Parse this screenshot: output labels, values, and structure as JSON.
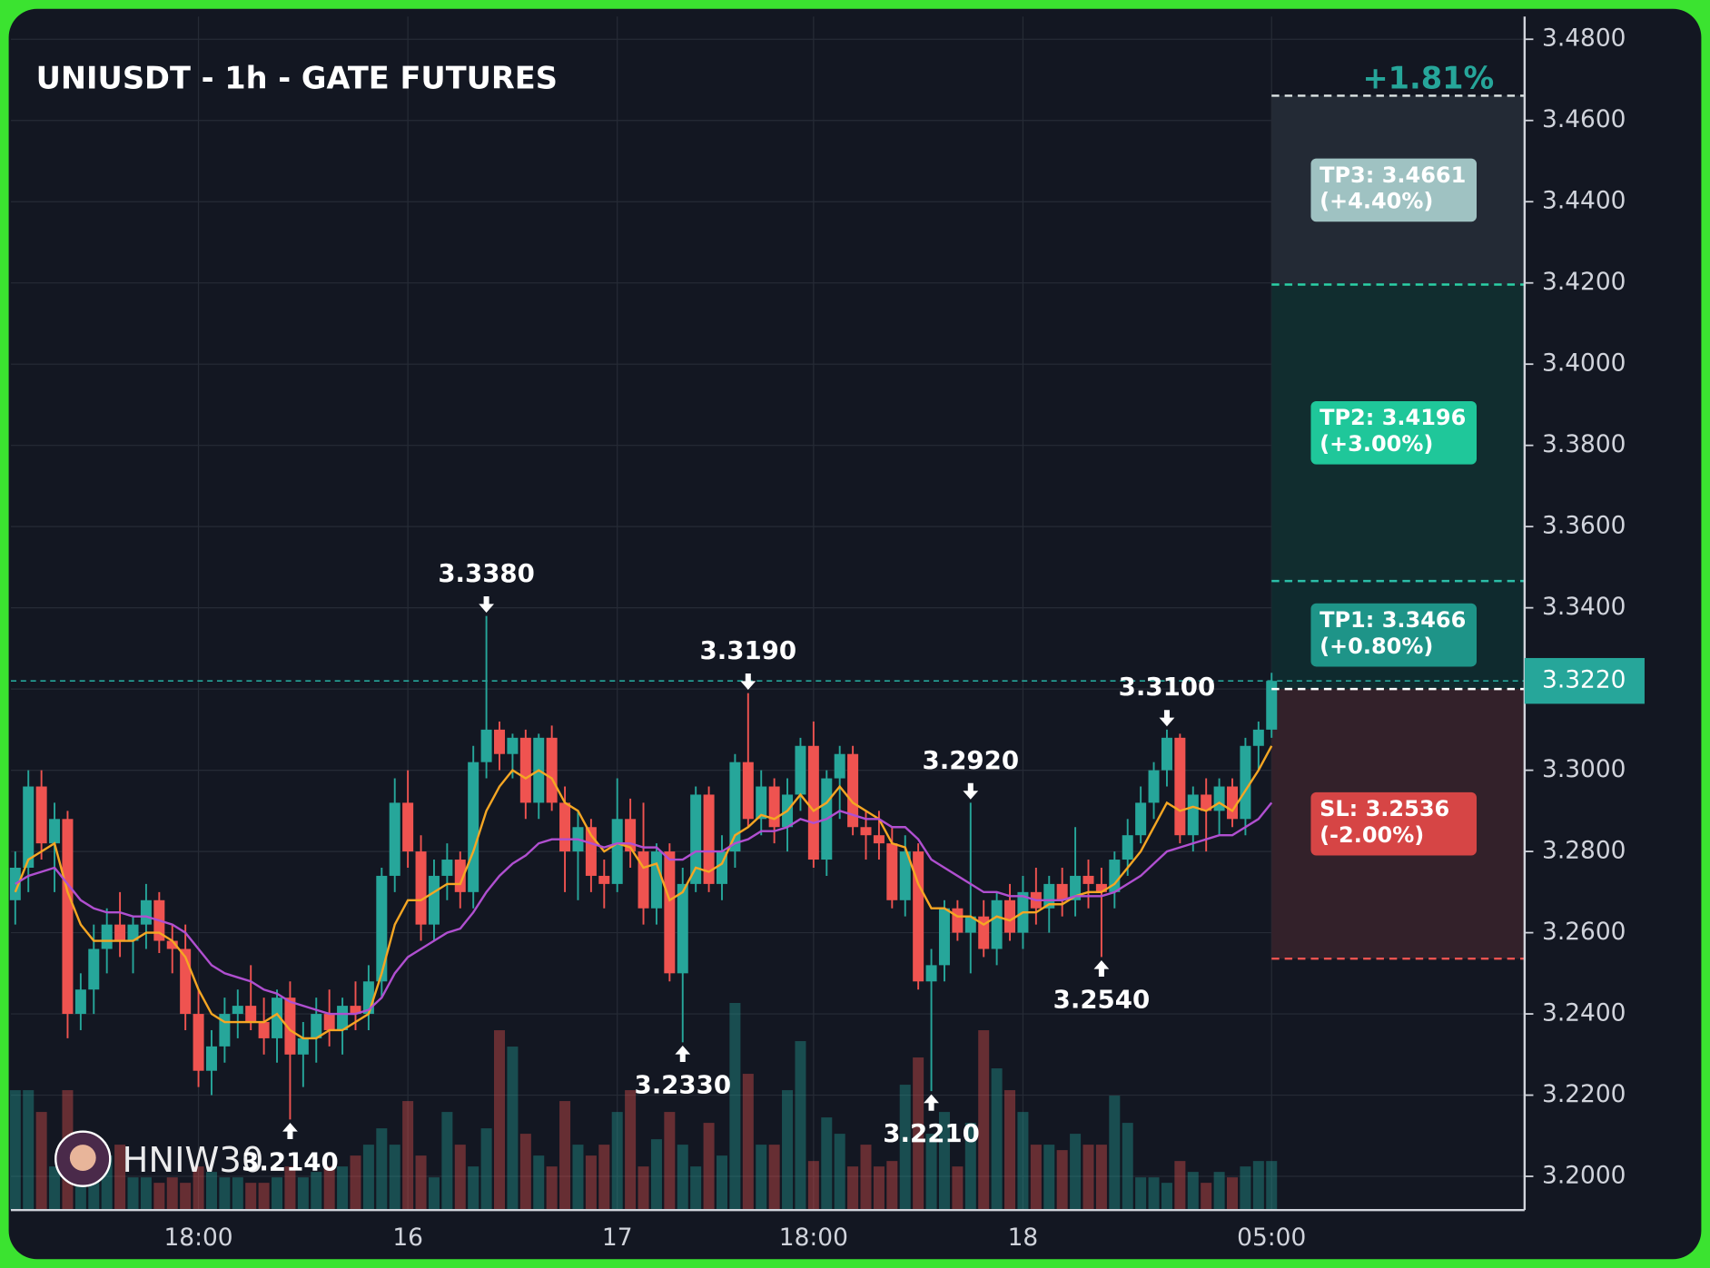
{
  "chart_data": {
    "type": "candlestick",
    "title": "UNIUSDT - 1h - GATE FUTURES",
    "watermark": "HNIW30",
    "up_color": "#26a69a",
    "down_color": "#ef5350",
    "grid": true,
    "ylim": [
      3.1917,
      3.4856
    ],
    "yticks": [
      {
        "value": 3.2,
        "label": "3.2000"
      },
      {
        "value": 3.22,
        "label": "3.2200"
      },
      {
        "value": 3.24,
        "label": "3.2400"
      },
      {
        "value": 3.26,
        "label": "3.2600"
      },
      {
        "value": 3.28,
        "label": "3.2800"
      },
      {
        "value": 3.3,
        "label": "3.3000"
      },
      {
        "value": 3.32,
        "label": "3.3200"
      },
      {
        "value": 3.34,
        "label": "3.3400"
      },
      {
        "value": 3.36,
        "label": "3.3600"
      },
      {
        "value": 3.38,
        "label": "3.3800"
      },
      {
        "value": 3.4,
        "label": "3.4000"
      },
      {
        "value": 3.42,
        "label": "3.4200"
      },
      {
        "value": 3.44,
        "label": "3.4400"
      },
      {
        "value": 3.46,
        "label": "3.4600"
      },
      {
        "value": 3.48,
        "label": "3.4800"
      }
    ],
    "categories": [
      null,
      null,
      null,
      null,
      null,
      null,
      null,
      null,
      null,
      null,
      null,
      null,
      null,
      null,
      "18:00",
      null,
      null,
      null,
      null,
      null,
      null,
      null,
      null,
      null,
      null,
      null,
      null,
      null,
      null,
      null,
      "16",
      null,
      null,
      null,
      null,
      null,
      null,
      null,
      null,
      null,
      null,
      null,
      null,
      null,
      null,
      null,
      "17",
      null,
      null,
      null,
      null,
      null,
      null,
      null,
      null,
      null,
      null,
      null,
      null,
      null,
      null,
      "18:00",
      null,
      null,
      null,
      null,
      null,
      null,
      null,
      null,
      null,
      null,
      null,
      null,
      null,
      null,
      null,
      "18",
      null,
      null,
      null,
      null,
      null,
      null,
      null,
      null,
      null,
      null,
      null,
      null,
      null,
      null,
      null,
      null,
      null,
      null,
      "05:00"
    ],
    "candles": [
      [
        3.268,
        3.28,
        3.262,
        3.276
      ],
      [
        3.276,
        3.3,
        3.27,
        3.296
      ],
      [
        3.296,
        3.3,
        3.278,
        3.282
      ],
      [
        3.282,
        3.292,
        3.27,
        3.288
      ],
      [
        3.288,
        3.29,
        3.234,
        3.24
      ],
      [
        3.24,
        3.25,
        3.236,
        3.246
      ],
      [
        3.246,
        3.262,
        3.24,
        3.256
      ],
      [
        3.256,
        3.266,
        3.25,
        3.262
      ],
      [
        3.262,
        3.27,
        3.254,
        3.258
      ],
      [
        3.258,
        3.264,
        3.25,
        3.262
      ],
      [
        3.262,
        3.272,
        3.256,
        3.268
      ],
      [
        3.268,
        3.27,
        3.255,
        3.258
      ],
      [
        3.258,
        3.262,
        3.25,
        3.256
      ],
      [
        3.256,
        3.262,
        3.236,
        3.24
      ],
      [
        3.24,
        3.246,
        3.222,
        3.226
      ],
      [
        3.226,
        3.236,
        3.22,
        3.232
      ],
      [
        3.232,
        3.244,
        3.228,
        3.24
      ],
      [
        3.24,
        3.246,
        3.234,
        3.242
      ],
      [
        3.242,
        3.252,
        3.236,
        3.238
      ],
      [
        3.238,
        3.244,
        3.23,
        3.234
      ],
      [
        3.234,
        3.246,
        3.228,
        3.244
      ],
      [
        3.244,
        3.248,
        3.214,
        3.23
      ],
      [
        3.23,
        3.238,
        3.222,
        3.234
      ],
      [
        3.234,
        3.244,
        3.228,
        3.24
      ],
      [
        3.24,
        3.246,
        3.232,
        3.236
      ],
      [
        3.236,
        3.244,
        3.23,
        3.242
      ],
      [
        3.242,
        3.248,
        3.236,
        3.24
      ],
      [
        3.24,
        3.252,
        3.236,
        3.248
      ],
      [
        3.248,
        3.276,
        3.244,
        3.274
      ],
      [
        3.274,
        3.298,
        3.27,
        3.292
      ],
      [
        3.292,
        3.3,
        3.276,
        3.28
      ],
      [
        3.28,
        3.284,
        3.258,
        3.262
      ],
      [
        3.262,
        3.278,
        3.258,
        3.274
      ],
      [
        3.274,
        3.282,
        3.268,
        3.278
      ],
      [
        3.278,
        3.28,
        3.266,
        3.27
      ],
      [
        3.27,
        3.306,
        3.266,
        3.302
      ],
      [
        3.302,
        3.338,
        3.298,
        3.31
      ],
      [
        3.31,
        3.312,
        3.3,
        3.304
      ],
      [
        3.304,
        3.309,
        3.298,
        3.308
      ],
      [
        3.308,
        3.31,
        3.288,
        3.292
      ],
      [
        3.292,
        3.309,
        3.288,
        3.308
      ],
      [
        3.308,
        3.311,
        3.29,
        3.292
      ],
      [
        3.292,
        3.296,
        3.27,
        3.28
      ],
      [
        3.28,
        3.29,
        3.268,
        3.286
      ],
      [
        3.286,
        3.288,
        3.27,
        3.274
      ],
      [
        3.274,
        3.278,
        3.266,
        3.272
      ],
      [
        3.272,
        3.298,
        3.27,
        3.288
      ],
      [
        3.288,
        3.293,
        3.276,
        3.28
      ],
      [
        3.28,
        3.292,
        3.262,
        3.266
      ],
      [
        3.266,
        3.282,
        3.262,
        3.28
      ],
      [
        3.28,
        3.282,
        3.248,
        3.25
      ],
      [
        3.25,
        3.276,
        3.233,
        3.272
      ],
      [
        3.272,
        3.296,
        3.27,
        3.294
      ],
      [
        3.294,
        3.296,
        3.27,
        3.272
      ],
      [
        3.272,
        3.284,
        3.268,
        3.28
      ],
      [
        3.28,
        3.304,
        3.276,
        3.302
      ],
      [
        3.302,
        3.319,
        3.286,
        3.288
      ],
      [
        3.288,
        3.3,
        3.284,
        3.296
      ],
      [
        3.296,
        3.298,
        3.282,
        3.286
      ],
      [
        3.286,
        3.298,
        3.28,
        3.294
      ],
      [
        3.294,
        3.308,
        3.29,
        3.306
      ],
      [
        3.306,
        3.312,
        3.276,
        3.278
      ],
      [
        3.278,
        3.3,
        3.274,
        3.298
      ],
      [
        3.298,
        3.306,
        3.288,
        3.304
      ],
      [
        3.304,
        3.306,
        3.284,
        3.286
      ],
      [
        3.286,
        3.29,
        3.278,
        3.284
      ],
      [
        3.284,
        3.29,
        3.278,
        3.282
      ],
      [
        3.282,
        3.286,
        3.266,
        3.268
      ],
      [
        3.268,
        3.284,
        3.264,
        3.28
      ],
      [
        3.28,
        3.282,
        3.246,
        3.248
      ],
      [
        3.248,
        3.256,
        3.221,
        3.252
      ],
      [
        3.252,
        3.268,
        3.248,
        3.266
      ],
      [
        3.266,
        3.268,
        3.258,
        3.26
      ],
      [
        3.26,
        3.292,
        3.25,
        3.264
      ],
      [
        3.264,
        3.268,
        3.254,
        3.256
      ],
      [
        3.256,
        3.27,
        3.252,
        3.268
      ],
      [
        3.268,
        3.272,
        3.258,
        3.26
      ],
      [
        3.26,
        3.274,
        3.256,
        3.27
      ],
      [
        3.27,
        3.276,
        3.262,
        3.266
      ],
      [
        3.266,
        3.274,
        3.26,
        3.272
      ],
      [
        3.272,
        3.276,
        3.264,
        3.268
      ],
      [
        3.268,
        3.286,
        3.264,
        3.274
      ],
      [
        3.274,
        3.278,
        3.266,
        3.272
      ],
      [
        3.272,
        3.276,
        3.254,
        3.27
      ],
      [
        3.27,
        3.28,
        3.266,
        3.278
      ],
      [
        3.278,
        3.288,
        3.274,
        3.284
      ],
      [
        3.284,
        3.296,
        3.282,
        3.292
      ],
      [
        3.292,
        3.302,
        3.288,
        3.3
      ],
      [
        3.3,
        3.31,
        3.296,
        3.308
      ],
      [
        3.308,
        3.309,
        3.282,
        3.284
      ],
      [
        3.284,
        3.296,
        3.28,
        3.294
      ],
      [
        3.294,
        3.298,
        3.28,
        3.29
      ],
      [
        3.29,
        3.298,
        3.284,
        3.296
      ],
      [
        3.296,
        3.298,
        3.286,
        3.288
      ],
      [
        3.288,
        3.308,
        3.284,
        3.306
      ],
      [
        3.306,
        3.312,
        3.3,
        3.31
      ],
      [
        3.31,
        3.324,
        3.308,
        3.322
      ]
    ],
    "volume": [
      110,
      110,
      90,
      40,
      110,
      60,
      40,
      50,
      60,
      30,
      30,
      25,
      30,
      25,
      40,
      35,
      30,
      30,
      25,
      25,
      30,
      40,
      30,
      35,
      40,
      40,
      50,
      60,
      75,
      60,
      100,
      50,
      30,
      90,
      60,
      40,
      75,
      165,
      150,
      70,
      50,
      40,
      100,
      60,
      50,
      60,
      90,
      110,
      40,
      65,
      90,
      60,
      40,
      80,
      50,
      190,
      125,
      60,
      60,
      110,
      155,
      45,
      85,
      70,
      40,
      60,
      40,
      45,
      115,
      140,
      70,
      90,
      40,
      80,
      165,
      130,
      110,
      90,
      60,
      60,
      55,
      70,
      60,
      60,
      105,
      80,
      30,
      30,
      25,
      45,
      35,
      25,
      35,
      30,
      40,
      45,
      45
    ],
    "ma_series": [
      {
        "color": "#f5a623",
        "values": [
          3.27,
          3.278,
          3.28,
          3.282,
          3.27,
          3.262,
          3.258,
          3.258,
          3.258,
          3.258,
          3.26,
          3.26,
          3.258,
          3.254,
          3.246,
          3.24,
          3.238,
          3.238,
          3.238,
          3.238,
          3.24,
          3.236,
          3.234,
          3.234,
          3.236,
          3.236,
          3.238,
          3.24,
          3.25,
          3.262,
          3.268,
          3.268,
          3.27,
          3.272,
          3.272,
          3.28,
          3.29,
          3.296,
          3.3,
          3.298,
          3.3,
          3.298,
          3.292,
          3.29,
          3.284,
          3.28,
          3.282,
          3.281,
          3.276,
          3.277,
          3.268,
          3.27,
          3.276,
          3.275,
          3.277,
          3.284,
          3.286,
          3.289,
          3.288,
          3.29,
          3.294,
          3.29,
          3.292,
          3.296,
          3.292,
          3.29,
          3.288,
          3.282,
          3.281,
          3.272,
          3.266,
          3.266,
          3.264,
          3.264,
          3.262,
          3.264,
          3.263,
          3.265,
          3.265,
          3.267,
          3.267,
          3.269,
          3.27,
          3.27,
          3.272,
          3.276,
          3.28,
          3.286,
          3.292,
          3.29,
          3.291,
          3.29,
          3.292,
          3.29,
          3.295,
          3.3,
          3.306
        ]
      },
      {
        "color": "#b04fd0",
        "values": [
          3.272,
          3.274,
          3.275,
          3.276,
          3.272,
          3.268,
          3.266,
          3.265,
          3.265,
          3.264,
          3.264,
          3.263,
          3.262,
          3.26,
          3.256,
          3.252,
          3.25,
          3.249,
          3.248,
          3.246,
          3.245,
          3.243,
          3.242,
          3.241,
          3.24,
          3.24,
          3.24,
          3.241,
          3.244,
          3.25,
          3.254,
          3.256,
          3.258,
          3.26,
          3.261,
          3.265,
          3.27,
          3.274,
          3.277,
          3.279,
          3.282,
          3.283,
          3.283,
          3.283,
          3.282,
          3.281,
          3.282,
          3.282,
          3.281,
          3.281,
          3.278,
          3.278,
          3.28,
          3.28,
          3.28,
          3.282,
          3.283,
          3.285,
          3.285,
          3.286,
          3.288,
          3.287,
          3.288,
          3.29,
          3.289,
          3.288,
          3.288,
          3.286,
          3.286,
          3.283,
          3.278,
          3.276,
          3.274,
          3.272,
          3.27,
          3.27,
          3.269,
          3.269,
          3.268,
          3.268,
          3.268,
          3.269,
          3.269,
          3.269,
          3.27,
          3.272,
          3.274,
          3.277,
          3.28,
          3.281,
          3.282,
          3.283,
          3.284,
          3.284,
          3.286,
          3.288,
          3.292
        ]
      }
    ],
    "annotations": [
      {
        "label": "3.3380",
        "value": 3.338
      },
      {
        "label": "3.3190",
        "value": 3.319
      },
      {
        "label": "3.2920",
        "value": 3.292
      },
      {
        "label": "3.3100",
        "value": 3.31
      },
      {
        "label": "3.2140",
        "value": 3.214
      },
      {
        "label": "3.2330",
        "value": 3.233
      },
      {
        "label": "3.2210",
        "value": 3.221
      },
      {
        "label": "3.2540",
        "value": 3.254
      }
    ],
    "last_price": {
      "value": 3.322,
      "label": "3.3220",
      "color": "#26a69a"
    },
    "position": {
      "entry": 3.32,
      "pnl_label": "+1.81%",
      "targets": [
        {
          "label": "TP1: 3.3466",
          "change": "(+0.80%)",
          "value": 3.3466,
          "color": "#1e9488",
          "line_color": "#2bbfa9"
        },
        {
          "label": "TP2: 3.4196",
          "change": "(+3.00%)",
          "value": 3.4196,
          "color": "#1fc79a",
          "line_color": "#2bd1a6"
        },
        {
          "label": "TP3: 3.4661",
          "change": "(+4.40%)",
          "value": 3.4661,
          "color": "#9fc2c2",
          "line_color": "#dfe6e6"
        }
      ],
      "stop": {
        "label": "SL: 3.2536",
        "change": "(-2.00%)",
        "value": 3.2536,
        "color": "#d64545",
        "line_color": "#ef5350"
      }
    }
  }
}
